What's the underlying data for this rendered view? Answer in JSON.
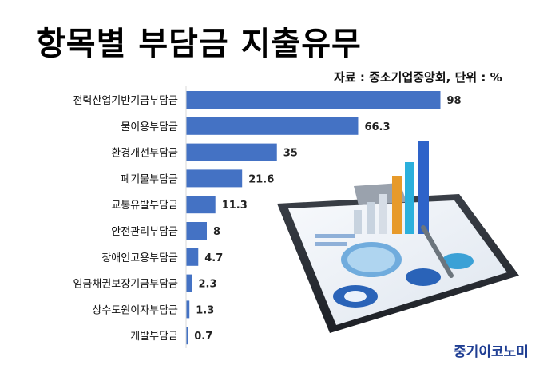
{
  "header": {
    "title": "항목별 부담금 지출유무",
    "source": "자료 : 중소기업중앙회, 단위 : %"
  },
  "brand": {
    "name": "중기이코노미"
  },
  "colors": {
    "bar": "#4472c4",
    "text": "#111111"
  },
  "illustration": {
    "name": "clipboard-with-charts-illustration"
  },
  "chart_data": {
    "type": "bar",
    "orientation": "horizontal",
    "categories": [
      "전력산업기반기금부담금",
      "물이용부담금",
      "환경개선부담금",
      "폐기물부담금",
      "교통유발부담금",
      "안전관리부담금",
      "장애인고용부담금",
      "임금채권보장기금부담금",
      "상수도원이자부담금",
      "개발부담금"
    ],
    "values": [
      98,
      66.3,
      35,
      21.6,
      11.3,
      8,
      4.7,
      2.3,
      1.3,
      0.7
    ],
    "value_labels": [
      "98",
      "66.3",
      "35",
      "21.6",
      "11.3",
      "8",
      "4.7",
      "2.3",
      "1.3",
      "0.7"
    ],
    "unit": "%",
    "xlim": [
      0,
      100
    ],
    "grid": false,
    "legend": "none"
  }
}
